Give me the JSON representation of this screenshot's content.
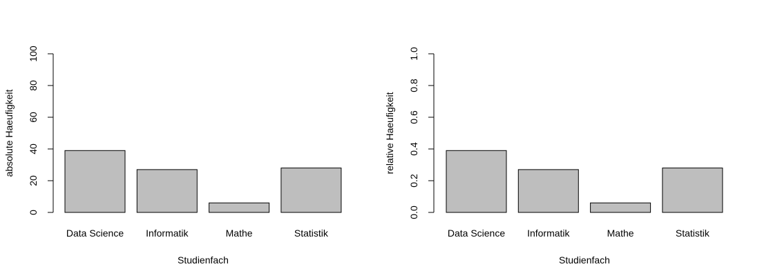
{
  "chart_data": [
    {
      "type": "bar",
      "categories": [
        "Data Science",
        "Informatik",
        "Mathe",
        "Statistik"
      ],
      "values": [
        39,
        27,
        6,
        28
      ],
      "title": "",
      "xlabel": "Studienfach",
      "ylabel": "absolute Haeufigkeit",
      "ylim": [
        0,
        100
      ],
      "yticks": [
        "0",
        "20",
        "40",
        "60",
        "80",
        "100"
      ],
      "bar_color": "#bebebe"
    },
    {
      "type": "bar",
      "categories": [
        "Data Science",
        "Informatik",
        "Mathe",
        "Statistik"
      ],
      "values": [
        0.39,
        0.27,
        0.06,
        0.28
      ],
      "title": "",
      "xlabel": "Studienfach",
      "ylabel": "relative Haeufigkeit",
      "ylim": [
        0,
        1
      ],
      "yticks": [
        "0.0",
        "0.2",
        "0.4",
        "0.6",
        "0.8",
        "1.0"
      ],
      "bar_color": "#bebebe"
    }
  ]
}
